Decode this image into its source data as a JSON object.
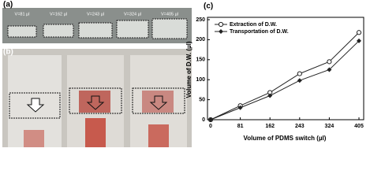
{
  "panel_labels": [
    "(a)",
    "(b)",
    "(c)"
  ],
  "photo_labels": [
    "V=81 µl",
    "V=162 µl",
    "V=243 µl",
    "V=324 µl",
    "V=405 µl"
  ],
  "chart_data": {
    "type": "line",
    "x_label": "Volume of PDMS switch (µl)",
    "y_label": "Volume of D.W. (µl)",
    "x": [
      0,
      81,
      162,
      243,
      324,
      405
    ],
    "xlim": [
      0,
      405
    ],
    "xticks": [
      0,
      81,
      162,
      243,
      324,
      405
    ],
    "ylim": [
      0,
      250
    ],
    "yticks": [
      0,
      50,
      100,
      150,
      200,
      250
    ],
    "legend": "upper left",
    "series": [
      {
        "name": "Extraction of D.W.",
        "color": "#222222",
        "marker": "open-circle",
        "values": [
          0,
          35,
          68,
          115,
          145,
          218
        ]
      },
      {
        "name": "Transportation of D.W.",
        "color": "#222222",
        "marker": "diamond",
        "values": [
          0,
          30,
          60,
          98,
          125,
          197
        ]
      }
    ]
  }
}
